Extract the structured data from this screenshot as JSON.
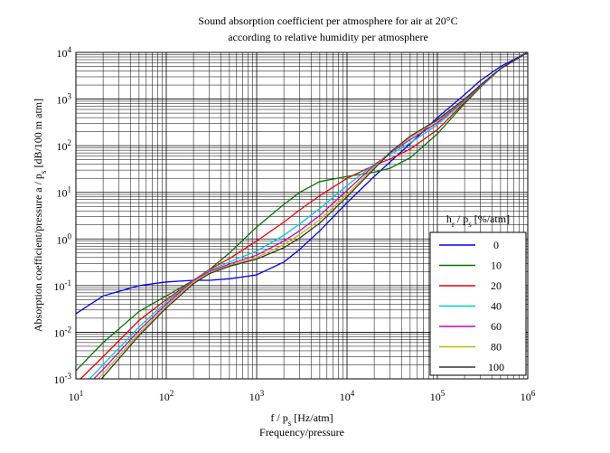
{
  "chart_data": {
    "type": "line",
    "title": "Sound absorption coefficient per atmosphere for air at 20°C",
    "subtitle": "according to relative humidity per atmosphere",
    "xlabel": "f / p",
    "xlabel_sub": "s",
    "xlabel_unit": " [Hz/atm]",
    "xlabel_second": "Frequency/pressure",
    "ylabel": "Absorption coefficient/pressure a / p",
    "ylabel_sub": "s",
    "ylabel_unit": " [dB/100 m atm]",
    "x_scale": "log",
    "y_scale": "log",
    "xlim": [
      10,
      1000000
    ],
    "ylim": [
      0.001,
      10000
    ],
    "grid": true,
    "x_ticks": [
      {
        "base": "10",
        "exp": "1"
      },
      {
        "base": "10",
        "exp": "2"
      },
      {
        "base": "10",
        "exp": "3"
      },
      {
        "base": "10",
        "exp": "4"
      },
      {
        "base": "10",
        "exp": "5"
      },
      {
        "base": "10",
        "exp": "6"
      }
    ],
    "y_ticks": [
      {
        "base": "10",
        "exp": "-3"
      },
      {
        "base": "10",
        "exp": "-2"
      },
      {
        "base": "10",
        "exp": "-1"
      },
      {
        "base": "10",
        "exp": "0"
      },
      {
        "base": "10",
        "exp": "1"
      },
      {
        "base": "10",
        "exp": "2"
      },
      {
        "base": "10",
        "exp": "3"
      },
      {
        "base": "10",
        "exp": "4"
      }
    ],
    "legend": {
      "title_main": "h",
      "title_sub1": "r",
      "title_mid": " / p",
      "title_sub2": "s",
      "title_unit": " [%/atm]",
      "placement": "lower-right"
    },
    "x": [
      10,
      20,
      50,
      100,
      200,
      300,
      500,
      1000,
      2000,
      3000,
      5000,
      10000,
      20000,
      30000,
      50000,
      100000,
      200000,
      300000,
      500000,
      1000000
    ],
    "series": [
      {
        "name": "0",
        "color": "#0000ee",
        "values": [
          0.025,
          0.06,
          0.1,
          0.12,
          0.13,
          0.13,
          0.14,
          0.17,
          0.32,
          0.6,
          1.5,
          6,
          22,
          45,
          110,
          400,
          1250,
          2500,
          5000,
          10000
        ]
      },
      {
        "name": "10",
        "color": "#007700",
        "values": [
          0.0015,
          0.006,
          0.028,
          0.06,
          0.13,
          0.22,
          0.5,
          1.8,
          5.5,
          10,
          17,
          22,
          27,
          33,
          55,
          180,
          800,
          1800,
          4500,
          10000
        ]
      },
      {
        "name": "20",
        "color": "#ee0000",
        "values": [
          0.0008,
          0.003,
          0.018,
          0.05,
          0.13,
          0.22,
          0.38,
          0.9,
          2.3,
          4.2,
          8.5,
          20,
          38,
          52,
          85,
          220,
          850,
          1850,
          4500,
          10000
        ]
      },
      {
        "name": "40",
        "color": "#00cccc",
        "values": [
          0.0005,
          0.002,
          0.013,
          0.045,
          0.13,
          0.21,
          0.32,
          0.55,
          1.2,
          2.1,
          4.5,
          14,
          40,
          65,
          115,
          280,
          900,
          1900,
          4500,
          10000
        ]
      },
      {
        "name": "60",
        "color": "#cc00cc",
        "values": [
          0.0004,
          0.0016,
          0.011,
          0.04,
          0.13,
          0.2,
          0.29,
          0.45,
          0.9,
          1.5,
          3.2,
          11,
          38,
          70,
          135,
          310,
          950,
          1950,
          4500,
          10000
        ]
      },
      {
        "name": "80",
        "color": "#bbbb00",
        "values": [
          0.0003,
          0.0013,
          0.0095,
          0.036,
          0.12,
          0.19,
          0.27,
          0.4,
          0.75,
          1.25,
          2.6,
          9,
          35,
          72,
          150,
          340,
          980,
          2000,
          4500,
          10000
        ]
      },
      {
        "name": "100",
        "color": "#333333",
        "values": [
          0.00025,
          0.0011,
          0.0085,
          0.033,
          0.11,
          0.18,
          0.26,
          0.37,
          0.65,
          1.05,
          2.2,
          8,
          32,
          72,
          160,
          360,
          1000,
          2000,
          4500,
          10000
        ]
      }
    ]
  }
}
